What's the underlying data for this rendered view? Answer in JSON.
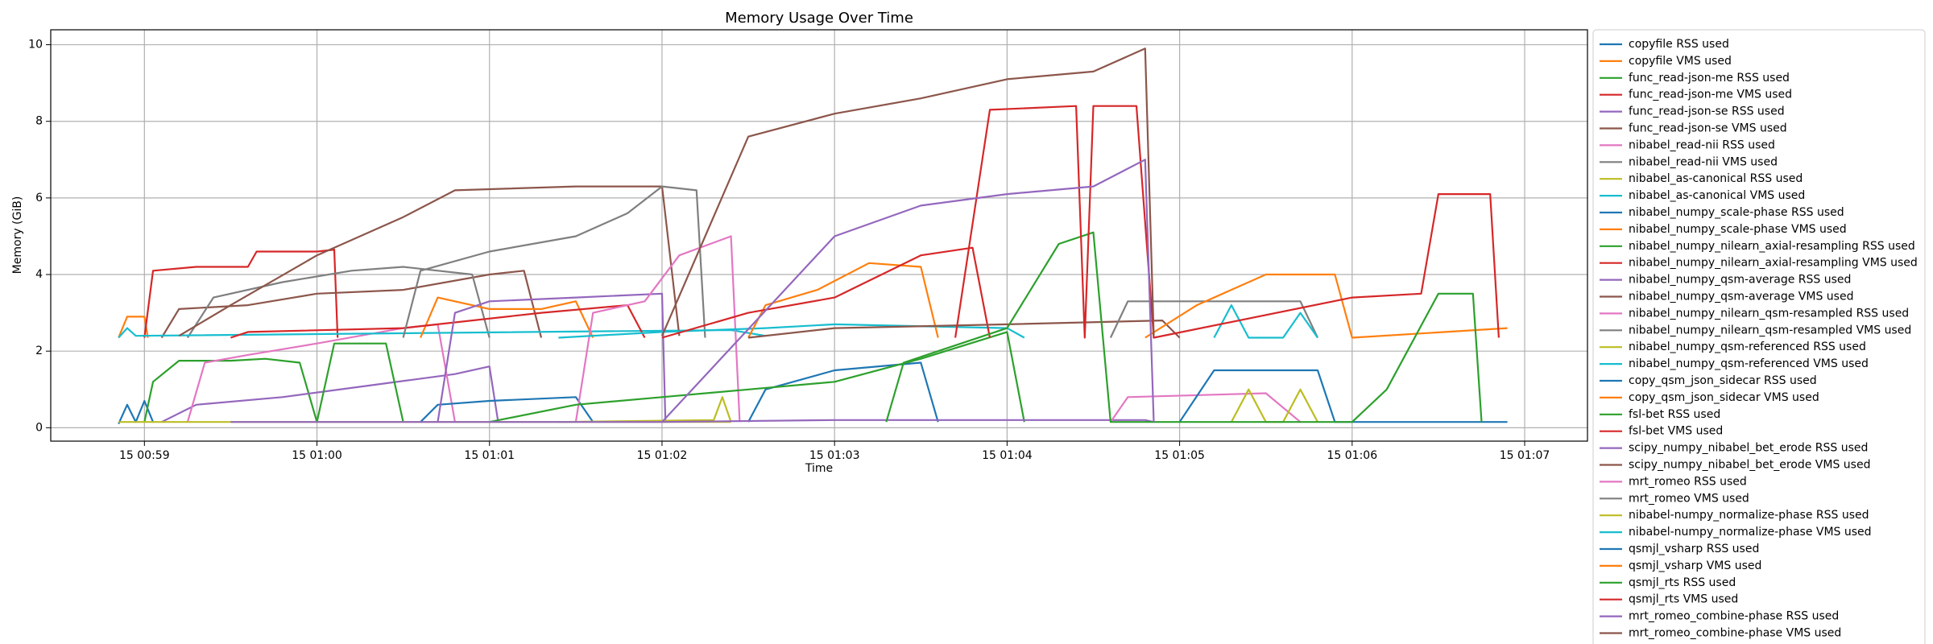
{
  "chart_data": {
    "type": "line",
    "title": "Memory Usage Over Time",
    "x_label": "Time",
    "y_label": "Memory (GiB)",
    "xlim": [
      58.457,
      67.364
    ],
    "ylim": [
      -0.35,
      10.39
    ],
    "xticks": [
      {
        "value": 59,
        "label": "15 00:59"
      },
      {
        "value": 60,
        "label": "15 01:00"
      },
      {
        "value": 61,
        "label": "15 01:01"
      },
      {
        "value": 62,
        "label": "15 01:02"
      },
      {
        "value": 63,
        "label": "15 01:03"
      },
      {
        "value": 64,
        "label": "15 01:04"
      },
      {
        "value": 65,
        "label": "15 01:05"
      },
      {
        "value": 66,
        "label": "15 01:06"
      },
      {
        "value": 67,
        "label": "15 01:07"
      }
    ],
    "yticks": [
      0,
      2,
      4,
      6,
      8,
      10
    ],
    "grid": true,
    "legend": "right",
    "series": [
      {
        "name": "copyfile RSS used",
        "color": "#1f77b4",
        "x": [
          58.85,
          58.9,
          58.95,
          59.0,
          59.05
        ],
        "values": [
          0.1,
          0.6,
          0.15,
          0.7,
          0.15
        ]
      },
      {
        "name": "copyfile VMS used",
        "color": "#ff7f0e",
        "x": [
          58.85,
          58.9,
          59.0,
          59.02
        ],
        "values": [
          2.35,
          2.9,
          2.9,
          2.35
        ]
      },
      {
        "name": "func_read-json-me RSS used",
        "color": "#2ca02c",
        "x": [
          59.0,
          59.05,
          59.2,
          59.5,
          59.7,
          59.9,
          60.0
        ],
        "values": [
          0.15,
          1.2,
          1.75,
          1.75,
          1.8,
          1.7,
          0.15
        ]
      },
      {
        "name": "func_read-json-me VMS used",
        "color": "#d62728",
        "x": [
          59.0,
          59.05,
          59.3,
          59.6,
          59.65,
          60.0,
          60.1,
          60.12
        ],
        "values": [
          2.35,
          4.1,
          4.2,
          4.2,
          4.6,
          4.6,
          4.65,
          2.35
        ]
      },
      {
        "name": "func_read-json-se RSS used",
        "color": "#9467bd",
        "x": [
          59.1,
          59.3,
          59.8,
          60.3,
          60.8,
          61.0,
          61.05
        ],
        "values": [
          0.15,
          0.6,
          0.8,
          1.1,
          1.4,
          1.6,
          0.15
        ]
      },
      {
        "name": "func_read-json-se VMS used",
        "color": "#8c564b",
        "x": [
          59.1,
          59.2,
          59.6,
          60.0,
          60.5,
          61.0,
          61.2,
          61.3
        ],
        "values": [
          2.35,
          3.1,
          3.2,
          3.5,
          3.6,
          4.0,
          4.1,
          2.35
        ]
      },
      {
        "name": "nibabel_read-nii RSS used",
        "color": "#e377c2",
        "x": [
          59.25,
          59.35,
          59.6,
          60.0,
          60.5,
          60.7,
          60.8
        ],
        "values": [
          0.15,
          1.7,
          1.9,
          2.2,
          2.6,
          2.7,
          0.15
        ]
      },
      {
        "name": "nibabel_read-nii VMS used",
        "color": "#7f7f7f",
        "x": [
          59.25,
          59.4,
          59.8,
          60.2,
          60.5,
          60.9,
          61.0
        ],
        "values": [
          2.35,
          3.4,
          3.8,
          4.1,
          4.2,
          4.0,
          2.35
        ]
      },
      {
        "name": "nibabel_as-canonical RSS used",
        "color": "#bcbd22",
        "x": [
          58.85,
          62.4
        ],
        "values": [
          0.15,
          0.15
        ]
      },
      {
        "name": "nibabel_as-canonical VMS used",
        "color": "#17becf",
        "x": [
          58.85,
          58.9,
          58.95,
          62.4,
          62.6
        ],
        "values": [
          2.35,
          2.6,
          2.4,
          2.55,
          2.4
        ]
      },
      {
        "name": "nibabel_numpy_scale-phase RSS used",
        "color": "#1f77b4",
        "x": [
          60.6,
          60.7,
          61.0,
          61.5,
          61.6
        ],
        "values": [
          0.15,
          0.6,
          0.7,
          0.8,
          0.15
        ]
      },
      {
        "name": "nibabel_numpy_scale-phase VMS used",
        "color": "#ff7f0e",
        "x": [
          60.6,
          60.7,
          61.0,
          61.3,
          61.5,
          61.6
        ],
        "values": [
          2.35,
          3.4,
          3.1,
          3.1,
          3.3,
          2.35
        ]
      },
      {
        "name": "nibabel_numpy_nilearn_axial-resampling RSS used",
        "color": "#2ca02c",
        "x": [
          60.0,
          60.1,
          60.4,
          60.5
        ],
        "values": [
          0.15,
          2.2,
          2.2,
          0.15
        ]
      },
      {
        "name": "nibabel_numpy_nilearn_axial-resampling VMS used",
        "color": "#d62728",
        "x": [
          59.5,
          59.6,
          60.5,
          61.3,
          61.8,
          61.9
        ],
        "values": [
          2.35,
          2.5,
          2.6,
          3.0,
          3.2,
          2.35
        ]
      },
      {
        "name": "nibabel_numpy_qsm-average RSS used",
        "color": "#9467bd",
        "x": [
          60.7,
          60.8,
          61.0,
          61.5,
          62.0,
          62.02
        ],
        "values": [
          0.15,
          3.0,
          3.3,
          3.4,
          3.5,
          0.15
        ]
      },
      {
        "name": "nibabel_numpy_qsm-average VMS used",
        "color": "#8c564b",
        "x": [
          59.2,
          59.5,
          60.0,
          60.5,
          60.8,
          61.5,
          62.0,
          62.1
        ],
        "values": [
          2.4,
          3.2,
          4.5,
          5.5,
          6.2,
          6.3,
          6.3,
          2.4
        ]
      },
      {
        "name": "nibabel_numpy_nilearn_qsm-resampled RSS used",
        "color": "#e377c2",
        "x": [
          61.5,
          61.6,
          61.9,
          62.1,
          62.4,
          62.45
        ],
        "values": [
          0.15,
          3.0,
          3.3,
          4.5,
          5.0,
          0.15
        ]
      },
      {
        "name": "nibabel_numpy_nilearn_qsm-resampled VMS used",
        "color": "#7f7f7f",
        "x": [
          60.5,
          60.6,
          61.0,
          61.5,
          61.8,
          62.0,
          62.2,
          62.25
        ],
        "values": [
          2.35,
          4.1,
          4.6,
          5.0,
          5.6,
          6.3,
          6.2,
          2.35
        ]
      },
      {
        "name": "nibabel_numpy_qsm-referenced RSS used",
        "color": "#bcbd22",
        "x": [
          61.4,
          62.3,
          62.35,
          62.4
        ],
        "values": [
          0.15,
          0.2,
          0.8,
          0.15
        ]
      },
      {
        "name": "nibabel_numpy_qsm-referenced VMS used",
        "color": "#17becf",
        "x": [
          61.4,
          62.0,
          62.6,
          63.0,
          64.0,
          64.1
        ],
        "values": [
          2.35,
          2.5,
          2.6,
          2.7,
          2.6,
          2.35
        ]
      },
      {
        "name": "copy_qsm_json_sidecar RSS used",
        "color": "#1f77b4",
        "x": [
          62.5,
          62.6,
          63.0,
          63.5,
          63.6
        ],
        "values": [
          0.15,
          1.0,
          1.5,
          1.7,
          0.15
        ]
      },
      {
        "name": "copy_qsm_json_sidecar VMS used",
        "color": "#ff7f0e",
        "x": [
          62.5,
          62.6,
          62.9,
          63.2,
          63.5,
          63.6
        ],
        "values": [
          2.35,
          3.2,
          3.6,
          4.3,
          4.2,
          2.35
        ]
      },
      {
        "name": "fsl-bet RSS used",
        "color": "#2ca02c",
        "x": [
          61.0,
          61.5,
          62.0,
          62.5,
          63.0,
          63.5,
          64.0,
          64.1
        ],
        "values": [
          0.15,
          0.6,
          0.8,
          1.0,
          1.2,
          1.8,
          2.5,
          0.15
        ]
      },
      {
        "name": "fsl-bet VMS used",
        "color": "#d62728",
        "x": [
          62.0,
          62.5,
          63.0,
          63.5,
          63.8,
          63.9
        ],
        "values": [
          2.35,
          3.0,
          3.4,
          4.5,
          4.7,
          2.35
        ]
      },
      {
        "name": "scipy_numpy_nibabel_bet_erode RSS used",
        "color": "#9467bd",
        "x": [
          59.5,
          62.0,
          63.0,
          64.8,
          64.85
        ],
        "values": [
          0.15,
          0.15,
          0.2,
          0.2,
          0.15
        ]
      },
      {
        "name": "scipy_numpy_nibabel_bet_erode VMS used",
        "color": "#8c564b",
        "x": [
          62.5,
          63.0,
          64.0,
          64.9,
          65.0
        ],
        "values": [
          2.35,
          2.6,
          2.7,
          2.8,
          2.35
        ]
      },
      {
        "name": "mrt_romeo RSS used",
        "color": "#e377c2",
        "x": [
          64.6,
          64.7,
          65.5,
          65.7
        ],
        "values": [
          0.15,
          0.8,
          0.9,
          0.15
        ]
      },
      {
        "name": "mrt_romeo VMS used",
        "color": "#7f7f7f",
        "x": [
          64.6,
          64.7,
          65.3,
          65.7,
          65.8
        ],
        "values": [
          2.35,
          3.3,
          3.3,
          3.3,
          2.35
        ]
      },
      {
        "name": "nibabel-numpy_normalize-phase RSS used",
        "color": "#bcbd22",
        "x": [
          65.3,
          65.4,
          65.5,
          65.6,
          65.7,
          65.8
        ],
        "values": [
          0.15,
          1.0,
          0.15,
          0.15,
          1.0,
          0.15
        ]
      },
      {
        "name": "nibabel-numpy_normalize-phase VMS used",
        "color": "#17becf",
        "x": [
          65.2,
          65.3,
          65.4,
          65.6,
          65.7,
          65.8
        ],
        "values": [
          2.35,
          3.2,
          2.35,
          2.35,
          3.0,
          2.35
        ]
      },
      {
        "name": "qsmjl_vsharp RSS used",
        "color": "#1f77b4",
        "x": [
          65.0,
          65.2,
          65.8,
          65.9,
          66.9
        ],
        "values": [
          0.15,
          1.5,
          1.5,
          0.15,
          0.15
        ]
      },
      {
        "name": "qsmjl_vsharp VMS used",
        "color": "#ff7f0e",
        "x": [
          64.8,
          65.1,
          65.5,
          65.9,
          66.0,
          66.9
        ],
        "values": [
          2.35,
          3.2,
          4.0,
          4.0,
          2.35,
          2.6
        ]
      },
      {
        "name": "qsmjl_rts RSS used",
        "color": "#2ca02c",
        "x": [
          63.3,
          63.4,
          64.0,
          64.3,
          64.5,
          64.6,
          66.0,
          66.2,
          66.5,
          66.7,
          66.75
        ],
        "values": [
          0.15,
          1.7,
          2.6,
          4.8,
          5.1,
          0.15,
          0.15,
          1.0,
          3.5,
          3.5,
          0.15
        ]
      },
      {
        "name": "qsmjl_rts VMS used",
        "color": "#d62728",
        "x": [
          63.7,
          63.9,
          64.4,
          64.45,
          64.5,
          64.75,
          64.85,
          66.0,
          66.4,
          66.5,
          66.8,
          66.85
        ],
        "values": [
          2.35,
          8.3,
          8.4,
          2.35,
          8.4,
          8.4,
          2.35,
          3.4,
          3.5,
          6.1,
          6.1,
          2.35
        ]
      },
      {
        "name": "mrt_romeo_combine-phase RSS used",
        "color": "#9467bd",
        "x": [
          62.0,
          63.0,
          63.5,
          64.0,
          64.5,
          64.8,
          64.85
        ],
        "values": [
          0.15,
          5.0,
          5.8,
          6.1,
          6.3,
          7.0,
          0.15
        ]
      },
      {
        "name": "mrt_romeo_combine-phase VMS used",
        "color": "#8c564b",
        "x": [
          62.0,
          62.5,
          63.0,
          63.5,
          64.0,
          64.5,
          64.8,
          64.85
        ],
        "values": [
          2.4,
          7.6,
          8.2,
          8.6,
          9.1,
          9.3,
          9.9,
          2.4
        ]
      }
    ]
  }
}
